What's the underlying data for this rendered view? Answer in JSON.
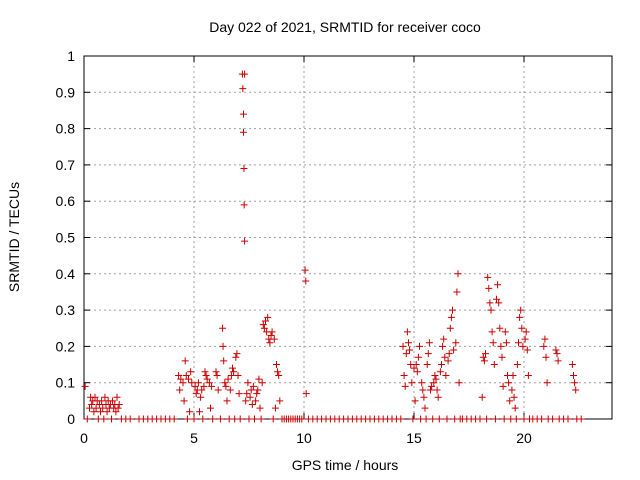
{
  "chart_data": {
    "type": "scatter",
    "title": "Day 022 of 2021, SRMTID for receiver coco",
    "xlabel": "GPS time / hours",
    "ylabel": "SRMTID / TECUs",
    "xlim": [
      0,
      24
    ],
    "ylim": [
      0,
      1
    ],
    "xticks": [
      0,
      5,
      10,
      15,
      20
    ],
    "xtick_labels": [
      "0",
      "5",
      "10",
      "15",
      "20"
    ],
    "yticks": [
      0,
      0.1,
      0.2,
      0.3,
      0.4,
      0.5,
      0.6,
      0.7,
      0.8,
      0.9,
      1
    ],
    "ytick_labels": [
      "0",
      "0.1",
      "0.2",
      "0.3",
      "0.4",
      "0.5",
      "0.6",
      "0.7",
      "0.8",
      "0.9",
      "1"
    ],
    "grid": true,
    "marker": "+",
    "color": "#cc0000",
    "series": [
      {
        "name": "SRMTID",
        "points": [
          [
            0.05,
            0.09
          ],
          [
            0.15,
            0.0
          ],
          [
            0.25,
            0.03
          ],
          [
            0.3,
            0.06
          ],
          [
            0.35,
            0.04
          ],
          [
            0.4,
            0.05
          ],
          [
            0.45,
            0.02
          ],
          [
            0.5,
            0.06
          ],
          [
            0.55,
            0.03
          ],
          [
            0.6,
            0.05
          ],
          [
            0.65,
            0.0
          ],
          [
            0.7,
            0.04
          ],
          [
            0.75,
            0.02
          ],
          [
            0.8,
            0.05
          ],
          [
            0.85,
            0.03
          ],
          [
            0.9,
            0.0
          ],
          [
            0.95,
            0.06
          ],
          [
            1.0,
            0.04
          ],
          [
            1.05,
            0.02
          ],
          [
            1.1,
            0.05
          ],
          [
            1.15,
            0.03
          ],
          [
            1.2,
            0.04
          ],
          [
            1.25,
            0.0
          ],
          [
            1.3,
            0.05
          ],
          [
            1.35,
            0.03
          ],
          [
            1.4,
            0.04
          ],
          [
            1.45,
            0.02
          ],
          [
            1.5,
            0.06
          ],
          [
            1.55,
            0.03
          ],
          [
            1.6,
            0.04
          ],
          [
            1.7,
            0.0
          ],
          [
            1.9,
            0.0
          ],
          [
            2.1,
            0.0
          ],
          [
            2.5,
            0.0
          ],
          [
            2.7,
            0.0
          ],
          [
            2.9,
            0.0
          ],
          [
            3.1,
            0.0
          ],
          [
            3.3,
            0.0
          ],
          [
            3.5,
            0.0
          ],
          [
            3.7,
            0.0
          ],
          [
            3.9,
            0.0
          ],
          [
            4.1,
            0.0
          ],
          [
            4.3,
            0.12
          ],
          [
            4.35,
            0.08
          ],
          [
            4.4,
            0.11
          ],
          [
            4.5,
            0.1
          ],
          [
            4.55,
            0.05
          ],
          [
            4.6,
            0.16
          ],
          [
            4.65,
            0.12
          ],
          [
            4.7,
            0.0
          ],
          [
            4.75,
            0.11
          ],
          [
            4.8,
            0.02
          ],
          [
            4.85,
            0.13
          ],
          [
            4.9,
            0.1
          ],
          [
            5.0,
            0.0
          ],
          [
            5.05,
            0.09
          ],
          [
            5.1,
            0.07
          ],
          [
            5.15,
            0.08
          ],
          [
            5.2,
            0.1
          ],
          [
            5.25,
            0.02
          ],
          [
            5.3,
            0.06
          ],
          [
            5.35,
            0.08
          ],
          [
            5.4,
            0.0
          ],
          [
            5.45,
            0.09
          ],
          [
            5.5,
            0.13
          ],
          [
            5.55,
            0.12
          ],
          [
            5.6,
            0.11
          ],
          [
            5.7,
            0.1
          ],
          [
            5.75,
            0.03
          ],
          [
            5.8,
            0.09
          ],
          [
            5.85,
            0.0
          ],
          [
            6.0,
            0.13
          ],
          [
            6.05,
            0.12
          ],
          [
            6.1,
            0.08
          ],
          [
            6.2,
            0.0
          ],
          [
            6.3,
            0.25
          ],
          [
            6.32,
            0.2
          ],
          [
            6.35,
            0.16
          ],
          [
            6.4,
            0.1
          ],
          [
            6.45,
            0.09
          ],
          [
            6.5,
            0.05
          ],
          [
            6.55,
            0.11
          ],
          [
            6.6,
            0.0
          ],
          [
            6.65,
            0.08
          ],
          [
            6.7,
            0.12
          ],
          [
            6.75,
            0.14
          ],
          [
            6.8,
            0.13
          ],
          [
            6.85,
            0.0
          ],
          [
            6.9,
            0.17
          ],
          [
            6.95,
            0.18
          ],
          [
            7.0,
            0.12
          ],
          [
            7.05,
            0.07
          ],
          [
            7.1,
            0.0
          ],
          [
            7.2,
            0.95
          ],
          [
            7.22,
            0.91
          ],
          [
            7.25,
            0.84
          ],
          [
            7.25,
            0.79
          ],
          [
            7.27,
            0.69
          ],
          [
            7.28,
            0.59
          ],
          [
            7.3,
            0.49
          ],
          [
            7.3,
            0.95
          ],
          [
            7.35,
            0.05
          ],
          [
            7.4,
            0.07
          ],
          [
            7.45,
            0.1
          ],
          [
            7.5,
            0.0
          ],
          [
            7.55,
            0.06
          ],
          [
            7.6,
            0.08
          ],
          [
            7.65,
            0.04
          ],
          [
            7.7,
            0.09
          ],
          [
            7.75,
            0.0
          ],
          [
            7.8,
            0.05
          ],
          [
            7.85,
            0.07
          ],
          [
            7.9,
            0.08
          ],
          [
            7.95,
            0.11
          ],
          [
            8.0,
            0.03
          ],
          [
            8.05,
            0.0
          ],
          [
            8.1,
            0.1
          ],
          [
            8.15,
            0.26
          ],
          [
            8.2,
            0.25
          ],
          [
            8.25,
            0.27
          ],
          [
            8.3,
            0.24
          ],
          [
            8.35,
            0.28
          ],
          [
            8.4,
            0.22
          ],
          [
            8.45,
            0.21
          ],
          [
            8.5,
            0.23
          ],
          [
            8.55,
            0.24
          ],
          [
            8.6,
            0.0
          ],
          [
            8.65,
            0.22
          ],
          [
            8.7,
            0.03
          ],
          [
            8.75,
            0.15
          ],
          [
            8.8,
            0.13
          ],
          [
            8.85,
            0.12
          ],
          [
            8.9,
            0.05
          ],
          [
            9.0,
            0.0
          ],
          [
            9.1,
            0.0
          ],
          [
            9.2,
            0.0
          ],
          [
            9.3,
            0.0
          ],
          [
            9.4,
            0.0
          ],
          [
            9.5,
            0.0
          ],
          [
            9.6,
            0.0
          ],
          [
            9.7,
            0.0
          ],
          [
            9.8,
            0.0
          ],
          [
            9.9,
            0.0
          ],
          [
            10.05,
            0.41
          ],
          [
            10.08,
            0.38
          ],
          [
            10.1,
            0.07
          ],
          [
            10.2,
            0.0
          ],
          [
            10.4,
            0.0
          ],
          [
            10.6,
            0.0
          ],
          [
            10.8,
            0.0
          ],
          [
            11.0,
            0.0
          ],
          [
            11.2,
            0.0
          ],
          [
            11.4,
            0.0
          ],
          [
            11.6,
            0.0
          ],
          [
            11.8,
            0.0
          ],
          [
            12.0,
            0.0
          ],
          [
            12.2,
            0.0
          ],
          [
            12.4,
            0.0
          ],
          [
            12.6,
            0.0
          ],
          [
            12.8,
            0.0
          ],
          [
            13.0,
            0.0
          ],
          [
            13.2,
            0.0
          ],
          [
            13.4,
            0.0
          ],
          [
            13.6,
            0.0
          ],
          [
            13.8,
            0.0
          ],
          [
            14.0,
            0.0
          ],
          [
            14.2,
            0.0
          ],
          [
            14.4,
            0.0
          ],
          [
            14.5,
            0.2
          ],
          [
            14.55,
            0.12
          ],
          [
            14.6,
            0.09
          ],
          [
            14.65,
            0.18
          ],
          [
            14.7,
            0.24
          ],
          [
            14.75,
            0.21
          ],
          [
            14.8,
            0.19
          ],
          [
            14.85,
            0.15
          ],
          [
            14.9,
            0.1
          ],
          [
            14.95,
            0.0
          ],
          [
            15.0,
            0.14
          ],
          [
            15.05,
            0.05
          ],
          [
            15.1,
            0.15
          ],
          [
            15.15,
            0.13
          ],
          [
            15.2,
            0.17
          ],
          [
            15.25,
            0.2
          ],
          [
            15.3,
            0.0
          ],
          [
            15.35,
            0.1
          ],
          [
            15.4,
            0.08
          ],
          [
            15.45,
            0.06
          ],
          [
            15.5,
            0.03
          ],
          [
            15.55,
            0.0
          ],
          [
            15.6,
            0.15
          ],
          [
            15.65,
            0.18
          ],
          [
            15.7,
            0.21
          ],
          [
            15.75,
            0.08
          ],
          [
            15.8,
            0.09
          ],
          [
            15.85,
            0.0
          ],
          [
            15.9,
            0.1
          ],
          [
            15.95,
            0.12
          ],
          [
            16.0,
            0.11
          ],
          [
            16.05,
            0.08
          ],
          [
            16.1,
            0.06
          ],
          [
            16.15,
            0.0
          ],
          [
            16.2,
            0.13
          ],
          [
            16.25,
            0.15
          ],
          [
            16.3,
            0.2
          ],
          [
            16.35,
            0.22
          ],
          [
            16.4,
            0.17
          ],
          [
            16.45,
            0.12
          ],
          [
            16.5,
            0.0
          ],
          [
            16.55,
            0.16
          ],
          [
            16.6,
            0.18
          ],
          [
            16.65,
            0.25
          ],
          [
            16.7,
            0.28
          ],
          [
            16.75,
            0.3
          ],
          [
            16.8,
            0.19
          ],
          [
            16.85,
            0.0
          ],
          [
            16.9,
            0.21
          ],
          [
            16.95,
            0.35
          ],
          [
            17.0,
            0.4
          ],
          [
            17.05,
            0.1
          ],
          [
            17.1,
            0.0
          ],
          [
            17.2,
            0.0
          ],
          [
            17.4,
            0.0
          ],
          [
            17.6,
            0.0
          ],
          [
            17.8,
            0.0
          ],
          [
            18.0,
            0.0
          ],
          [
            18.1,
            0.06
          ],
          [
            18.15,
            0.17
          ],
          [
            18.2,
            0.16
          ],
          [
            18.25,
            0.18
          ],
          [
            18.3,
            0.0
          ],
          [
            18.35,
            0.39
          ],
          [
            18.4,
            0.36
          ],
          [
            18.45,
            0.32
          ],
          [
            18.5,
            0.3
          ],
          [
            18.55,
            0.24
          ],
          [
            18.6,
            0.21
          ],
          [
            18.65,
            0.15
          ],
          [
            18.7,
            0.0
          ],
          [
            18.75,
            0.33
          ],
          [
            18.8,
            0.37
          ],
          [
            18.85,
            0.32
          ],
          [
            18.9,
            0.25
          ],
          [
            18.95,
            0.2
          ],
          [
            19.0,
            0.17
          ],
          [
            19.05,
            0.09
          ],
          [
            19.1,
            0.0
          ],
          [
            19.15,
            0.24
          ],
          [
            19.2,
            0.21
          ],
          [
            19.25,
            0.12
          ],
          [
            19.3,
            0.1
          ],
          [
            19.35,
            0.05
          ],
          [
            19.4,
            0.0
          ],
          [
            19.45,
            0.08
          ],
          [
            19.5,
            0.12
          ],
          [
            19.55,
            0.06
          ],
          [
            19.6,
            0.03
          ],
          [
            19.65,
            0.0
          ],
          [
            19.7,
            0.15
          ],
          [
            19.75,
            0.21
          ],
          [
            19.8,
            0.28
          ],
          [
            19.85,
            0.3
          ],
          [
            19.9,
            0.25
          ],
          [
            19.95,
            0.2
          ],
          [
            20.0,
            0.0
          ],
          [
            20.05,
            0.22
          ],
          [
            20.1,
            0.24
          ],
          [
            20.15,
            0.19
          ],
          [
            20.2,
            0.12
          ],
          [
            20.25,
            0.0
          ],
          [
            20.4,
            0.0
          ],
          [
            20.6,
            0.0
          ],
          [
            20.8,
            0.0
          ],
          [
            20.9,
            0.2
          ],
          [
            20.95,
            0.22
          ],
          [
            21.0,
            0.17
          ],
          [
            21.05,
            0.1
          ],
          [
            21.1,
            0.0
          ],
          [
            21.3,
            0.0
          ],
          [
            21.45,
            0.19
          ],
          [
            21.5,
            0.18
          ],
          [
            21.55,
            0.16
          ],
          [
            21.6,
            0.0
          ],
          [
            21.8,
            0.0
          ],
          [
            22.0,
            0.0
          ],
          [
            22.2,
            0.15
          ],
          [
            22.25,
            0.12
          ],
          [
            22.3,
            0.1
          ],
          [
            22.35,
            0.08
          ],
          [
            22.4,
            0.0
          ],
          [
            22.6,
            0.0
          ]
        ]
      }
    ]
  }
}
